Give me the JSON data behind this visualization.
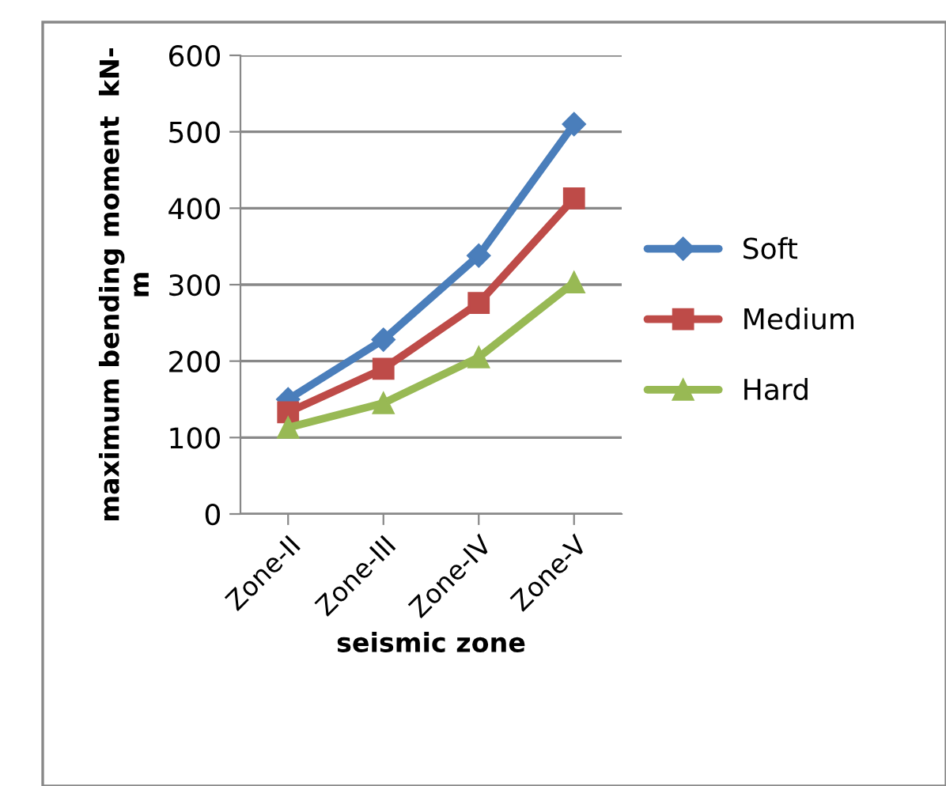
{
  "chart_data": {
    "type": "line",
    "xlabel": "seismic zone",
    "ylabel": "maximum bending moment  kN-\nm",
    "categories": [
      "Zone-II",
      "Zone-III",
      "Zone-IV",
      "Zone-V"
    ],
    "series": [
      {
        "name": "Soft",
        "color": "#4a7ebb",
        "marker": "diamond",
        "values": [
          150,
          228,
          338,
          510
        ]
      },
      {
        "name": "Medium",
        "color": "#be4b48",
        "marker": "square",
        "values": [
          133,
          190,
          276,
          413
        ]
      },
      {
        "name": "Hard",
        "color": "#98b954",
        "marker": "triangle",
        "values": [
          113,
          145,
          205,
          303
        ]
      }
    ],
    "ylim": [
      0,
      600
    ],
    "yticks": [
      0,
      100,
      200,
      300,
      400,
      500,
      600
    ],
    "grid": "y",
    "legend": "right"
  }
}
